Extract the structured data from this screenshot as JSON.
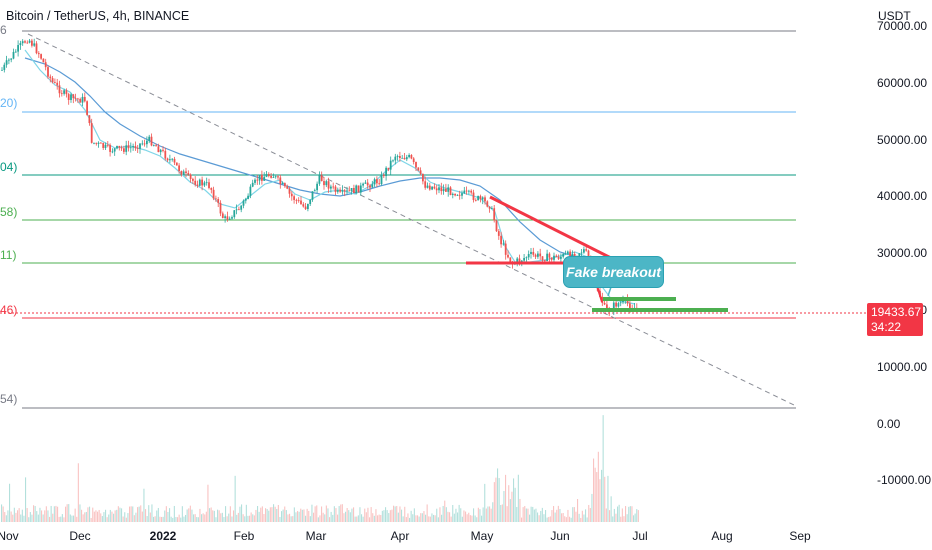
{
  "header": {
    "symbol_title": "Bitcoin / TetherUS, 4h, BINANCE",
    "currency": "USDT"
  },
  "price_axis": {
    "ticks": [
      "70000.00",
      "60000.00",
      "50000.00",
      "40000.00",
      "30000.00",
      "20000.00",
      "10000.00",
      "0.00",
      "-10000.00"
    ],
    "current_price": "19433.67",
    "countdown": "34:22"
  },
  "time_axis": {
    "ticks": [
      "Nov",
      "Dec",
      "2022",
      "Feb",
      "Mar",
      "Apr",
      "May",
      "Jun",
      "Jul",
      "Aug",
      "Sep"
    ]
  },
  "fib_levels": [
    {
      "label": "6",
      "color": "#787b86"
    },
    {
      "label": "20)",
      "color": "#64b5f6"
    },
    {
      "label": "04)",
      "color": "#089981"
    },
    {
      "label": "58)",
      "color": "#4caf50"
    },
    {
      "label": "11)",
      "color": "#4caf50"
    },
    {
      "label": "46)",
      "color": "#f23645"
    },
    {
      "label": "54)",
      "color": "#787b86"
    }
  ],
  "annotation": {
    "callout_text": "Fake breakout"
  },
  "colors": {
    "up_candle": "#26a69a",
    "down_candle": "#ef5350",
    "trendline": "#f23645",
    "support_zone": "#4caf50",
    "ma_slow": "#5b9bd5",
    "ma_fast": "#7fd6e8"
  }
}
